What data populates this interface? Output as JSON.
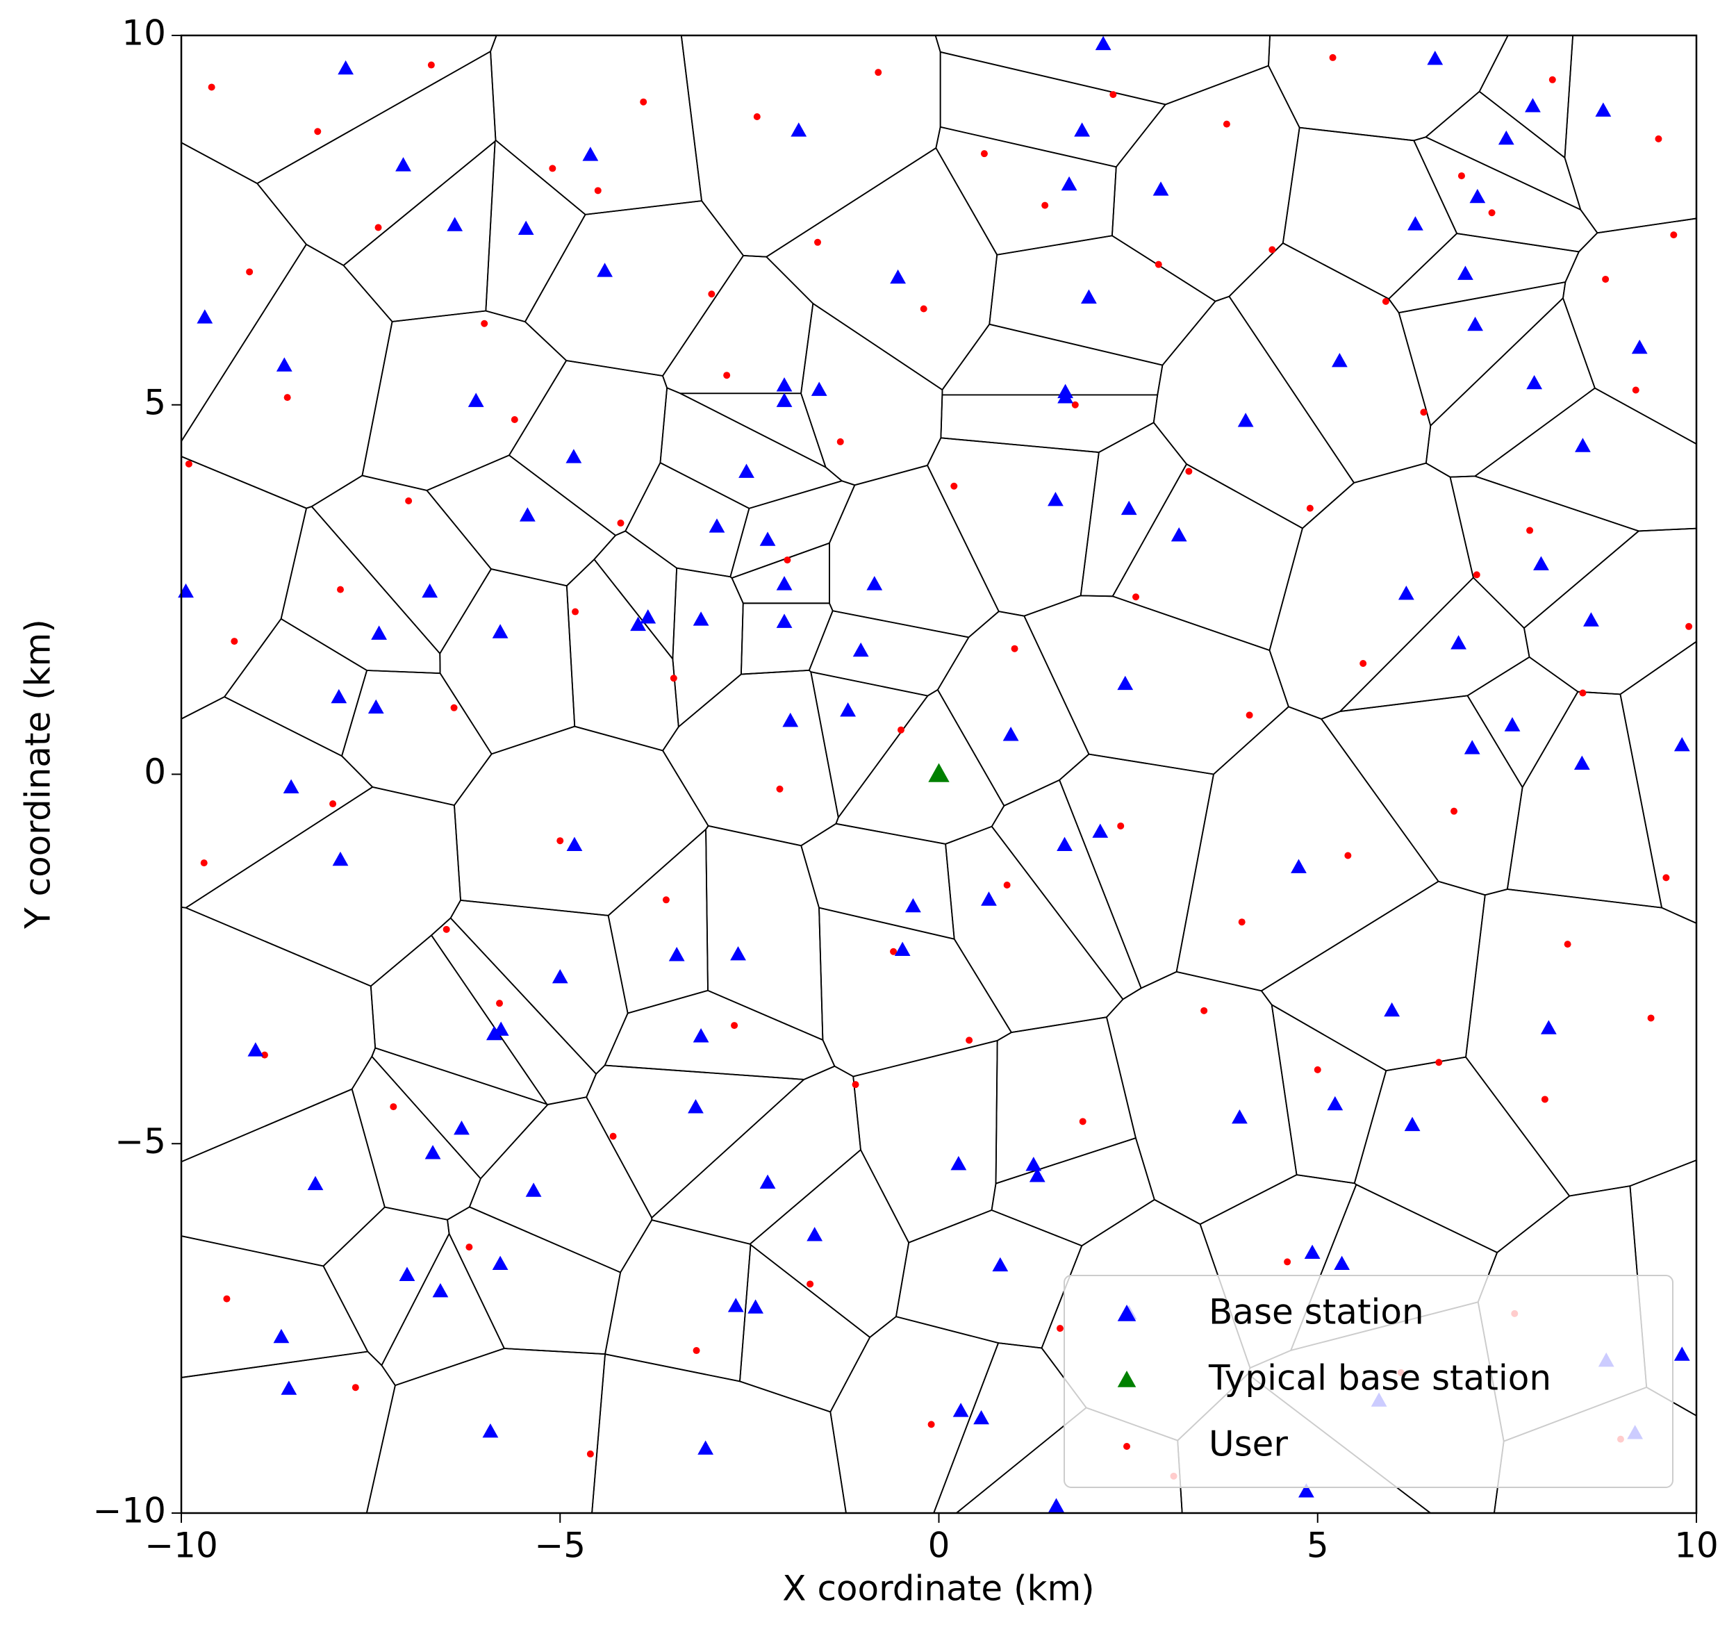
{
  "chart_data": {
    "type": "voronoi-scatter",
    "xlabel": "X coordinate (km)",
    "ylabel": "Y coordinate (km)",
    "xlim": [
      -10,
      10
    ],
    "ylim": [
      -10,
      10
    ],
    "xticks": [
      {
        "value": -10,
        "label": "−10"
      },
      {
        "value": -5,
        "label": "−5"
      },
      0,
      5,
      10
    ],
    "yticks": [
      {
        "value": -10,
        "label": "−10"
      },
      {
        "value": -5,
        "label": "−5"
      },
      0,
      5,
      10
    ],
    "voronoi": true,
    "legend": "lower right",
    "series": [
      {
        "name": "Base station",
        "color": "#0000ff",
        "marker": "triangle",
        "x": [
          -7.83,
          2.17,
          6.55,
          7.84,
          8.77,
          -1.85,
          1.89,
          -4.6,
          -7.07,
          7.49,
          1.72,
          2.93,
          7.11,
          6.29,
          -6.39,
          -5.45,
          -4.41,
          -0.54,
          6.95,
          1.98,
          -9.69,
          7.08,
          9.25,
          -8.64,
          5.29,
          -2.04,
          -1.58,
          1.67,
          -2.04,
          1.67,
          -6.11,
          7.86,
          4.05,
          8.5,
          -4.82,
          -2.54,
          1.54,
          2.51,
          -5.43,
          -2.93,
          3.17,
          -2.26,
          7.95,
          -9.94,
          -6.72,
          -2.04,
          -0.85,
          6.17,
          -3.84,
          -3.97,
          -3.14,
          -2.04,
          8.61,
          -7.39,
          -5.79,
          6.86,
          -1.03,
          2.46,
          -7.92,
          -7.43,
          -1.2,
          -1.96,
          7.57,
          0.95,
          7.04,
          9.81,
          8.49,
          -8.55,
          2.13,
          -4.81,
          1.66,
          -7.9,
          4.75,
          0.66,
          -0.34,
          -0.48,
          -3.46,
          -2.65,
          -5.0,
          5.98,
          8.05,
          -5.87,
          -5.78,
          -3.14,
          -9.02,
          -3.21,
          5.23,
          3.97,
          -6.3,
          6.25,
          -6.68,
          0.26,
          1.25,
          1.3,
          -8.23,
          -5.35,
          -2.26,
          -1.64,
          4.93,
          0.81,
          5.32,
          -5.79,
          -7.02,
          -6.58,
          -2.68,
          -2.42,
          2.51,
          -8.68,
          8.81,
          9.81,
          -8.58,
          5.81,
          0.29,
          0.56,
          9.19,
          -5.92,
          -3.08,
          1.55,
          4.85
        ],
        "y": [
          9.55,
          9.88,
          9.68,
          9.04,
          8.98,
          8.71,
          8.71,
          8.38,
          8.24,
          8.6,
          7.98,
          7.91,
          7.81,
          7.44,
          7.43,
          7.38,
          6.81,
          6.72,
          6.77,
          6.45,
          6.18,
          6.08,
          5.77,
          5.53,
          5.59,
          5.26,
          5.2,
          5.17,
          5.05,
          5.1,
          5.05,
          5.29,
          4.78,
          4.44,
          4.29,
          4.09,
          3.71,
          3.59,
          3.5,
          3.35,
          3.23,
          3.17,
          2.84,
          2.47,
          2.47,
          2.57,
          2.57,
          2.44,
          2.12,
          2.02,
          2.09,
          2.06,
          2.08,
          1.9,
          1.92,
          1.77,
          1.67,
          1.22,
          1.04,
          0.9,
          0.86,
          0.72,
          0.66,
          0.53,
          0.35,
          0.39,
          0.14,
          -0.18,
          -0.78,
          -0.96,
          -0.96,
          -1.16,
          -1.26,
          -1.7,
          -1.79,
          -2.38,
          -2.45,
          -2.44,
          -2.75,
          -3.2,
          -3.44,
          -3.52,
          -3.46,
          -3.55,
          -3.74,
          -4.51,
          -4.47,
          -4.65,
          -4.8,
          -4.75,
          -5.13,
          -5.28,
          -5.29,
          -5.44,
          -5.55,
          -5.64,
          -5.53,
          -6.24,
          -6.48,
          -6.65,
          -6.63,
          -6.63,
          -6.78,
          -7.0,
          -7.2,
          -7.22,
          -7.3,
          -7.62,
          -7.94,
          -7.86,
          -8.32,
          -8.48,
          -8.62,
          -8.72,
          -8.92,
          -8.9,
          -9.13,
          -9.91,
          -9.71
        ]
      },
      {
        "name": "Typical base station",
        "color": "#008000",
        "marker": "triangle",
        "x": [
          0
        ],
        "y": [
          0
        ]
      },
      {
        "name": "User",
        "color": "#ff0000",
        "marker": "dot",
        "x": [
          -9.6,
          -8.2,
          -6.7,
          -5.1,
          -3.9,
          -2.4,
          -0.8,
          0.6,
          2.3,
          3.8,
          5.2,
          6.9,
          8.1,
          9.5,
          -9.1,
          -7.4,
          -6.0,
          -4.5,
          -3.0,
          -1.6,
          -0.2,
          1.4,
          2.9,
          4.4,
          5.9,
          7.3,
          8.8,
          9.7,
          -9.9,
          -8.6,
          -7.0,
          -5.6,
          -4.2,
          -2.8,
          -1.3,
          0.2,
          1.8,
          3.3,
          4.9,
          6.4,
          7.8,
          9.2,
          -9.3,
          -7.9,
          -6.4,
          -4.8,
          -3.5,
          -2.0,
          -0.5,
          1.0,
          2.6,
          4.1,
          5.6,
          7.1,
          8.5,
          9.9,
          -9.7,
          -8.0,
          -6.5,
          -5.0,
          -3.6,
          -2.1,
          -0.6,
          0.9,
          2.4,
          4.0,
          5.4,
          6.8,
          8.3,
          9.6,
          -8.9,
          -7.2,
          -5.8,
          -4.3,
          -2.7,
          -1.1,
          0.4,
          1.9,
          3.5,
          5.0,
          6.6,
          8.0,
          9.4,
          -9.4,
          -7.7,
          -6.2,
          -4.6,
          -3.2,
          -1.7,
          -0.1,
          1.6,
          3.1,
          4.6,
          6.1,
          7.6,
          9.0
        ],
        "y": [
          9.3,
          8.7,
          9.6,
          8.2,
          9.1,
          8.9,
          9.5,
          8.4,
          9.2,
          8.8,
          9.7,
          8.1,
          9.4,
          8.6,
          6.8,
          7.4,
          6.1,
          7.9,
          6.5,
          7.2,
          6.3,
          7.7,
          6.9,
          7.1,
          6.4,
          7.6,
          6.7,
          7.3,
          4.2,
          5.1,
          3.7,
          4.8,
          3.4,
          5.4,
          4.5,
          3.9,
          5.0,
          4.1,
          3.6,
          4.9,
          3.3,
          5.2,
          1.8,
          2.5,
          0.9,
          2.2,
          1.3,
          2.9,
          0.6,
          1.7,
          2.4,
          0.8,
          1.5,
          2.7,
          1.1,
          2.0,
          -1.2,
          -0.4,
          -2.1,
          -0.9,
          -1.7,
          -0.2,
          -2.4,
          -1.5,
          -0.7,
          -2.0,
          -1.1,
          -0.5,
          -2.3,
          -1.4,
          -3.8,
          -4.5,
          -3.1,
          -4.9,
          -3.4,
          -4.2,
          -3.6,
          -4.7,
          -3.2,
          -4.0,
          -3.9,
          -4.4,
          -3.3,
          -7.1,
          -8.3,
          -6.4,
          -9.2,
          -7.8,
          -6.9,
          -8.8,
          -7.5,
          -9.5,
          -6.6,
          -8.1,
          -7.3,
          -9.0
        ]
      }
    ]
  }
}
